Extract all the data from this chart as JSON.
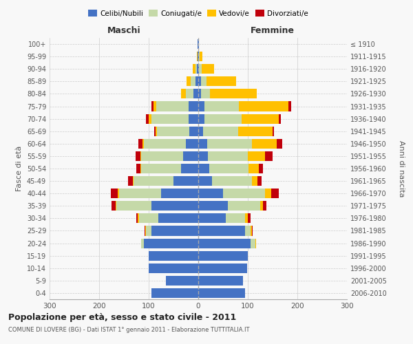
{
  "age_groups": [
    "0-4",
    "5-9",
    "10-14",
    "15-19",
    "20-24",
    "25-29",
    "30-34",
    "35-39",
    "40-44",
    "45-49",
    "50-54",
    "55-59",
    "60-64",
    "65-69",
    "70-74",
    "75-79",
    "80-84",
    "85-89",
    "90-94",
    "95-99",
    "100+"
  ],
  "birth_years": [
    "2006-2010",
    "2001-2005",
    "1996-2000",
    "1991-1995",
    "1986-1990",
    "1981-1985",
    "1976-1980",
    "1971-1975",
    "1966-1970",
    "1961-1965",
    "1956-1960",
    "1951-1955",
    "1946-1950",
    "1941-1945",
    "1936-1940",
    "1931-1935",
    "1926-1930",
    "1921-1925",
    "1916-1920",
    "1911-1915",
    "≤ 1910"
  ],
  "maschi": {
    "celibi": [
      95,
      65,
      100,
      100,
      110,
      95,
      80,
      95,
      75,
      50,
      35,
      30,
      25,
      18,
      20,
      20,
      10,
      5,
      3,
      1,
      1
    ],
    "coniugati": [
      0,
      0,
      0,
      0,
      5,
      10,
      40,
      70,
      85,
      80,
      80,
      85,
      85,
      65,
      75,
      65,
      15,
      10,
      3,
      0,
      0
    ],
    "vedovi": [
      0,
      0,
      0,
      0,
      0,
      2,
      2,
      2,
      2,
      2,
      2,
      2,
      3,
      3,
      5,
      5,
      10,
      8,
      5,
      2,
      0
    ],
    "divorziati": [
      0,
      0,
      0,
      0,
      0,
      2,
      3,
      8,
      15,
      10,
      8,
      10,
      8,
      3,
      5,
      5,
      0,
      0,
      0,
      0,
      0
    ]
  },
  "femmine": {
    "nubili": [
      95,
      90,
      98,
      100,
      105,
      95,
      55,
      60,
      50,
      28,
      22,
      20,
      18,
      10,
      12,
      12,
      5,
      5,
      2,
      1,
      1
    ],
    "coniugate": [
      0,
      0,
      0,
      0,
      10,
      10,
      40,
      65,
      85,
      80,
      80,
      80,
      90,
      70,
      75,
      70,
      18,
      12,
      5,
      2,
      0
    ],
    "vedove": [
      0,
      0,
      0,
      0,
      2,
      3,
      5,
      5,
      12,
      12,
      20,
      35,
      50,
      70,
      75,
      100,
      95,
      60,
      25,
      5,
      0
    ],
    "divorziate": [
      0,
      0,
      0,
      0,
      0,
      2,
      5,
      8,
      15,
      8,
      8,
      15,
      12,
      3,
      5,
      5,
      0,
      0,
      0,
      0,
      0
    ]
  },
  "colors": {
    "celibi": "#4472c4",
    "coniugati": "#c5d9a8",
    "vedovi": "#ffc000",
    "divorziati": "#c0000b"
  },
  "xlim": 300,
  "title": "Popolazione per età, sesso e stato civile - 2011",
  "subtitle": "COMUNE DI LOVERE (BG) - Dati ISTAT 1° gennaio 2011 - Elaborazione TUTTITALIA.IT",
  "ylabel_left": "Fasce di età",
  "ylabel_right": "Anni di nascita",
  "xlabel_left": "Maschi",
  "xlabel_right": "Femmine",
  "background_color": "#f8f8f8",
  "grid_color": "#cccccc"
}
